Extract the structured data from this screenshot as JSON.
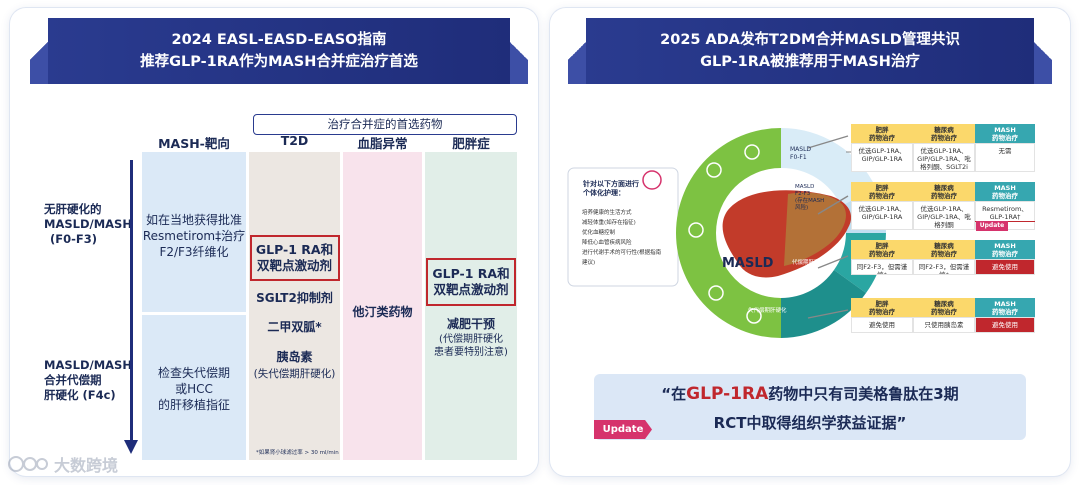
{
  "left": {
    "title_line1": "2024 EASL-EASD-EASO指南",
    "title_line2": "推荐GLP-1RA作为MASH合并症治疗首选",
    "group_header": "治疗合并症的首选药物",
    "columns": [
      "MASH-靶向",
      "T2D",
      "血脂异常",
      "肥胖症"
    ],
    "row1_label": [
      "无肝硬化的",
      "MASLD/MASH",
      "(F0-F3)"
    ],
    "row2_label": [
      "MASLD/MASH",
      "合并代偿期",
      "肝硬化 (F4c)"
    ],
    "mash_row1": [
      "如在当地获得批准",
      "Resmetirom‡治疗",
      "F2/F3纤维化"
    ],
    "mash_row2": [
      "检查失代偿期",
      "或HCC",
      "的肝移植指征"
    ],
    "t2d_box": [
      "GLP-1 RA和",
      "双靶点激动剂"
    ],
    "t2d_sglt2": "SGLT2抑制剂",
    "t2d_metformin": "二甲双胍*",
    "t2d_insulin": "胰岛素",
    "t2d_insulin_note": "(失代偿期肝硬化)",
    "t2d_footnote": "*如果肾小球滤过率 > 30 ml/min",
    "lipid": "他汀类药物",
    "obesity_box": [
      "GLP-1 RA和",
      "双靶点激动剂"
    ],
    "obesity_weight": "减肥干预",
    "obesity_note": [
      "(代偿期肝硬化",
      "患者要特别注意)"
    ],
    "watermark": "大数跨境"
  },
  "right": {
    "title_line1": "2025 ADA发布T2DM合并MASLD管理共识",
    "title_line2": "GLP-1RA被推荐用于MASH治疗",
    "circle_center": "MASLD",
    "care_title": [
      "针对以下方面进行",
      "个体化护理："
    ],
    "care_items": [
      "培养健康的生活方式",
      "减轻体重(如存在指征)",
      "优化血糖控制",
      "降低心血管疾病风险",
      "进行代谢手术的可行性(根据指南建议)"
    ],
    "stages": [
      {
        "label": [
          "MASLD",
          "F0-F1"
        ]
      },
      {
        "label": [
          "MASLD",
          "F2-F3",
          "(存在MASH",
          "风险)"
        ]
      },
      {
        "label": [
          "代偿期肝硬化"
        ]
      },
      {
        "label": [
          "失代偿期肝硬化"
        ]
      }
    ],
    "table_headers": [
      [
        "肥胖",
        "药物治疗"
      ],
      [
        "糖尿病",
        "药物治疗"
      ],
      [
        "MASH",
        "药物治疗"
      ]
    ],
    "table_rows": [
      [
        "优选GLP-1RA、GIP/GLP-1RA",
        "优选GLP-1RA、GIP/GLP-1RA、吡格列酮、SGLT2i",
        "无需"
      ],
      [
        "优选GLP-1RA、GIP/GLP-1RA",
        "优选GLP-1RA、GIP/GLP-1RA、吡格列酮",
        "Resmetirom、GLP-1RA†"
      ],
      [
        "同F2-F3，但需谨慎*",
        "同F2-F3，但需谨慎*",
        "避免使用"
      ],
      [
        "避免使用",
        "只使用胰岛素",
        "避免使用"
      ]
    ],
    "update_small": "Update",
    "quote_pre": "“在",
    "quote_highlight": "GLP-1RA",
    "quote_post": "药物中只有司美格鲁肽在3期",
    "quote_line2": "RCT中取得组织学获益证据”",
    "update_label": "Update"
  },
  "colors": {
    "navy": "#1f2d7a",
    "red": "#c0272d",
    "mash_col": "#dbe9f7",
    "t2d_col": "#ece7e2",
    "lipid_col": "#f8e3ec",
    "obesity_col": "#e1eee8",
    "green": "#7dc242",
    "teal": "#2aa6a2",
    "pink": "#d6336c"
  }
}
